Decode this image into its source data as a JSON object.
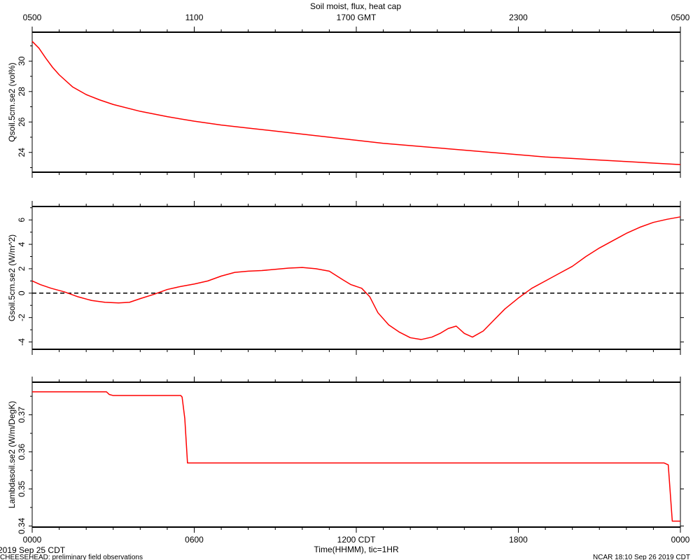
{
  "figure": {
    "title": "Soil moist, flux, heat cap",
    "top_axis_ticks": [
      "0500",
      "1100",
      "1700 GMT",
      "2300",
      "0500"
    ],
    "bottom_axis_ticks": [
      "0000",
      "0600",
      "1200 CDT",
      "1800",
      "0000"
    ],
    "xlabel": "Time(HHMM), tic=1HR",
    "date_label": "2019 Sep 25 CDT",
    "footer_left": "CHEESEHEAD: preliminary field observations",
    "footer_right": "NCAR 18:10 Sep 26 2019 CDT",
    "line_color": "#ff0000",
    "zero_line_color": "#000000"
  },
  "chart_data": [
    {
      "type": "line",
      "title": "Soil moist, flux, heat cap",
      "xlabel": "",
      "ylabel": "Qsoil.5cm.se2 (vol%)",
      "xlim": [
        0,
        24
      ],
      "ylim": [
        22.7,
        31.9
      ],
      "yticks": [
        24,
        26,
        28,
        30
      ],
      "grid": false,
      "series": [
        {
          "name": "",
          "x": [
            0,
            0.25,
            0.5,
            0.75,
            1,
            1.5,
            2,
            2.5,
            3,
            4,
            5,
            6,
            7,
            8,
            9,
            10,
            11,
            12,
            13,
            14,
            15,
            16,
            17,
            18,
            19,
            20,
            21,
            22,
            23,
            24
          ],
          "y": [
            31.3,
            30.85,
            30.2,
            29.6,
            29.1,
            28.3,
            27.8,
            27.45,
            27.15,
            26.7,
            26.35,
            26.05,
            25.8,
            25.6,
            25.4,
            25.2,
            25.0,
            24.8,
            24.6,
            24.45,
            24.3,
            24.15,
            24.0,
            23.85,
            23.7,
            23.6,
            23.5,
            23.4,
            23.3,
            23.2
          ]
        }
      ]
    },
    {
      "type": "line",
      "ylabel": "Gsoil.5cm.se2 (W/m^2)",
      "xlim": [
        0,
        24
      ],
      "ylim": [
        -4.6,
        7.1
      ],
      "yticks": [
        -4,
        -2,
        0,
        2,
        4,
        6
      ],
      "grid": false,
      "reference_line": {
        "y": 0,
        "style": "dashed"
      },
      "series": [
        {
          "name": "",
          "x": [
            0,
            0.3,
            0.7,
            1.2,
            1.7,
            2.2,
            2.7,
            3.2,
            3.6,
            4.0,
            4.5,
            5.0,
            5.5,
            6.0,
            6.5,
            7.0,
            7.5,
            8.0,
            8.5,
            9.0,
            9.5,
            10.0,
            10.5,
            11.0,
            11.5,
            11.8,
            12.2,
            12.5,
            12.8,
            13.2,
            13.6,
            14.0,
            14.4,
            14.8,
            15.1,
            15.4,
            15.7,
            16.0,
            16.3,
            16.7,
            17.1,
            17.5,
            18.0,
            18.5,
            19.0,
            19.5,
            20.0,
            20.5,
            21.0,
            21.5,
            22.0,
            22.5,
            23.0,
            23.5,
            24.0
          ],
          "y": [
            1.0,
            0.7,
            0.4,
            0.1,
            -0.3,
            -0.6,
            -0.75,
            -0.8,
            -0.75,
            -0.45,
            -0.1,
            0.3,
            0.55,
            0.75,
            1.0,
            1.4,
            1.7,
            1.8,
            1.85,
            1.95,
            2.05,
            2.1,
            2.0,
            1.8,
            1.1,
            0.7,
            0.4,
            -0.3,
            -1.6,
            -2.6,
            -3.2,
            -3.65,
            -3.8,
            -3.6,
            -3.3,
            -2.9,
            -2.7,
            -3.3,
            -3.6,
            -3.1,
            -2.2,
            -1.3,
            -0.4,
            0.4,
            1.0,
            1.6,
            2.2,
            3.0,
            3.7,
            4.3,
            4.9,
            5.4,
            5.8,
            6.05,
            6.25
          ]
        }
      ]
    },
    {
      "type": "line",
      "ylabel": "Lambdasoil.se2 (W/m/DegK)",
      "xlim": [
        0,
        24
      ],
      "ylim": [
        0.3397,
        0.3788
      ],
      "yticks": [
        0.34,
        0.35,
        0.36,
        0.37
      ],
      "grid": false,
      "series": [
        {
          "name": "",
          "x": [
            0,
            2.75,
            2.85,
            3.0,
            5.0,
            5.5,
            5.55,
            5.65,
            5.75,
            23.4,
            23.55,
            23.7,
            24.0
          ],
          "y": [
            0.3762,
            0.3762,
            0.3755,
            0.3752,
            0.3752,
            0.3752,
            0.3748,
            0.369,
            0.357,
            0.357,
            0.3565,
            0.3413,
            0.3413
          ]
        }
      ]
    }
  ]
}
